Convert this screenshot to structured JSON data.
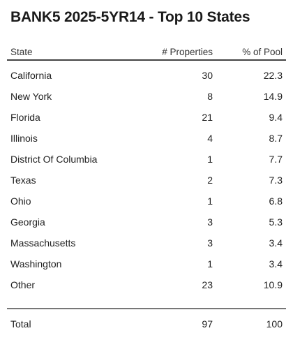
{
  "title": "BANK5 2025-5YR14 - Top 10 States",
  "table": {
    "headers": {
      "state": "State",
      "properties": "# Properties",
      "pct_pool": "% of Pool"
    },
    "rows": [
      {
        "state": "California",
        "properties": "30",
        "pct": "22.3"
      },
      {
        "state": "New York",
        "properties": "8",
        "pct": "14.9"
      },
      {
        "state": "Florida",
        "properties": "21",
        "pct": "9.4"
      },
      {
        "state": "Illinois",
        "properties": "4",
        "pct": "8.7"
      },
      {
        "state": "District Of Columbia",
        "properties": "1",
        "pct": "7.7"
      },
      {
        "state": "Texas",
        "properties": "2",
        "pct": "7.3"
      },
      {
        "state": "Ohio",
        "properties": "1",
        "pct": "6.8"
      },
      {
        "state": "Georgia",
        "properties": "3",
        "pct": "5.3"
      },
      {
        "state": "Massachusetts",
        "properties": "3",
        "pct": "3.4"
      },
      {
        "state": "Washington",
        "properties": "1",
        "pct": "3.4"
      },
      {
        "state": "Other",
        "properties": "23",
        "pct": "10.9"
      }
    ],
    "total": {
      "label": "Total",
      "properties": "97",
      "pct": "100"
    }
  }
}
